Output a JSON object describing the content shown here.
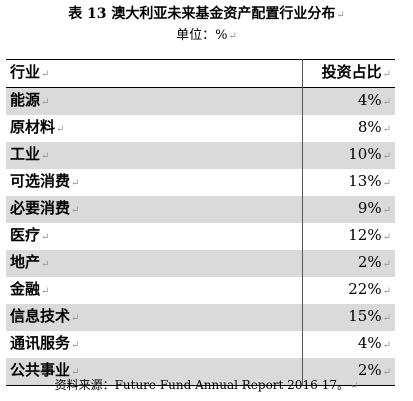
{
  "title": "表  13 澳大利亚未来基金资产配置行业分布",
  "unit": "单位：%",
  "paragraph_mark": "↵",
  "table": {
    "headers": [
      "行业",
      "投资占比"
    ],
    "rows": [
      {
        "industry": "能源",
        "share": "4%"
      },
      {
        "industry": "原材料",
        "share": "8%"
      },
      {
        "industry": "工业",
        "share": "10%"
      },
      {
        "industry": "可选消费",
        "share": "13%"
      },
      {
        "industry": "必要消费",
        "share": "9%"
      },
      {
        "industry": "医疗",
        "share": "12%"
      },
      {
        "industry": "地产",
        "share": "2%"
      },
      {
        "industry": "金融",
        "share": "22%"
      },
      {
        "industry": "信息技术",
        "share": "15%"
      },
      {
        "industry": "通讯服务",
        "share": "4%"
      },
      {
        "industry": "公共事业",
        "share": "2%"
      }
    ]
  },
  "source": "资料来源：Future Fund Annual Report 2016-17。"
}
